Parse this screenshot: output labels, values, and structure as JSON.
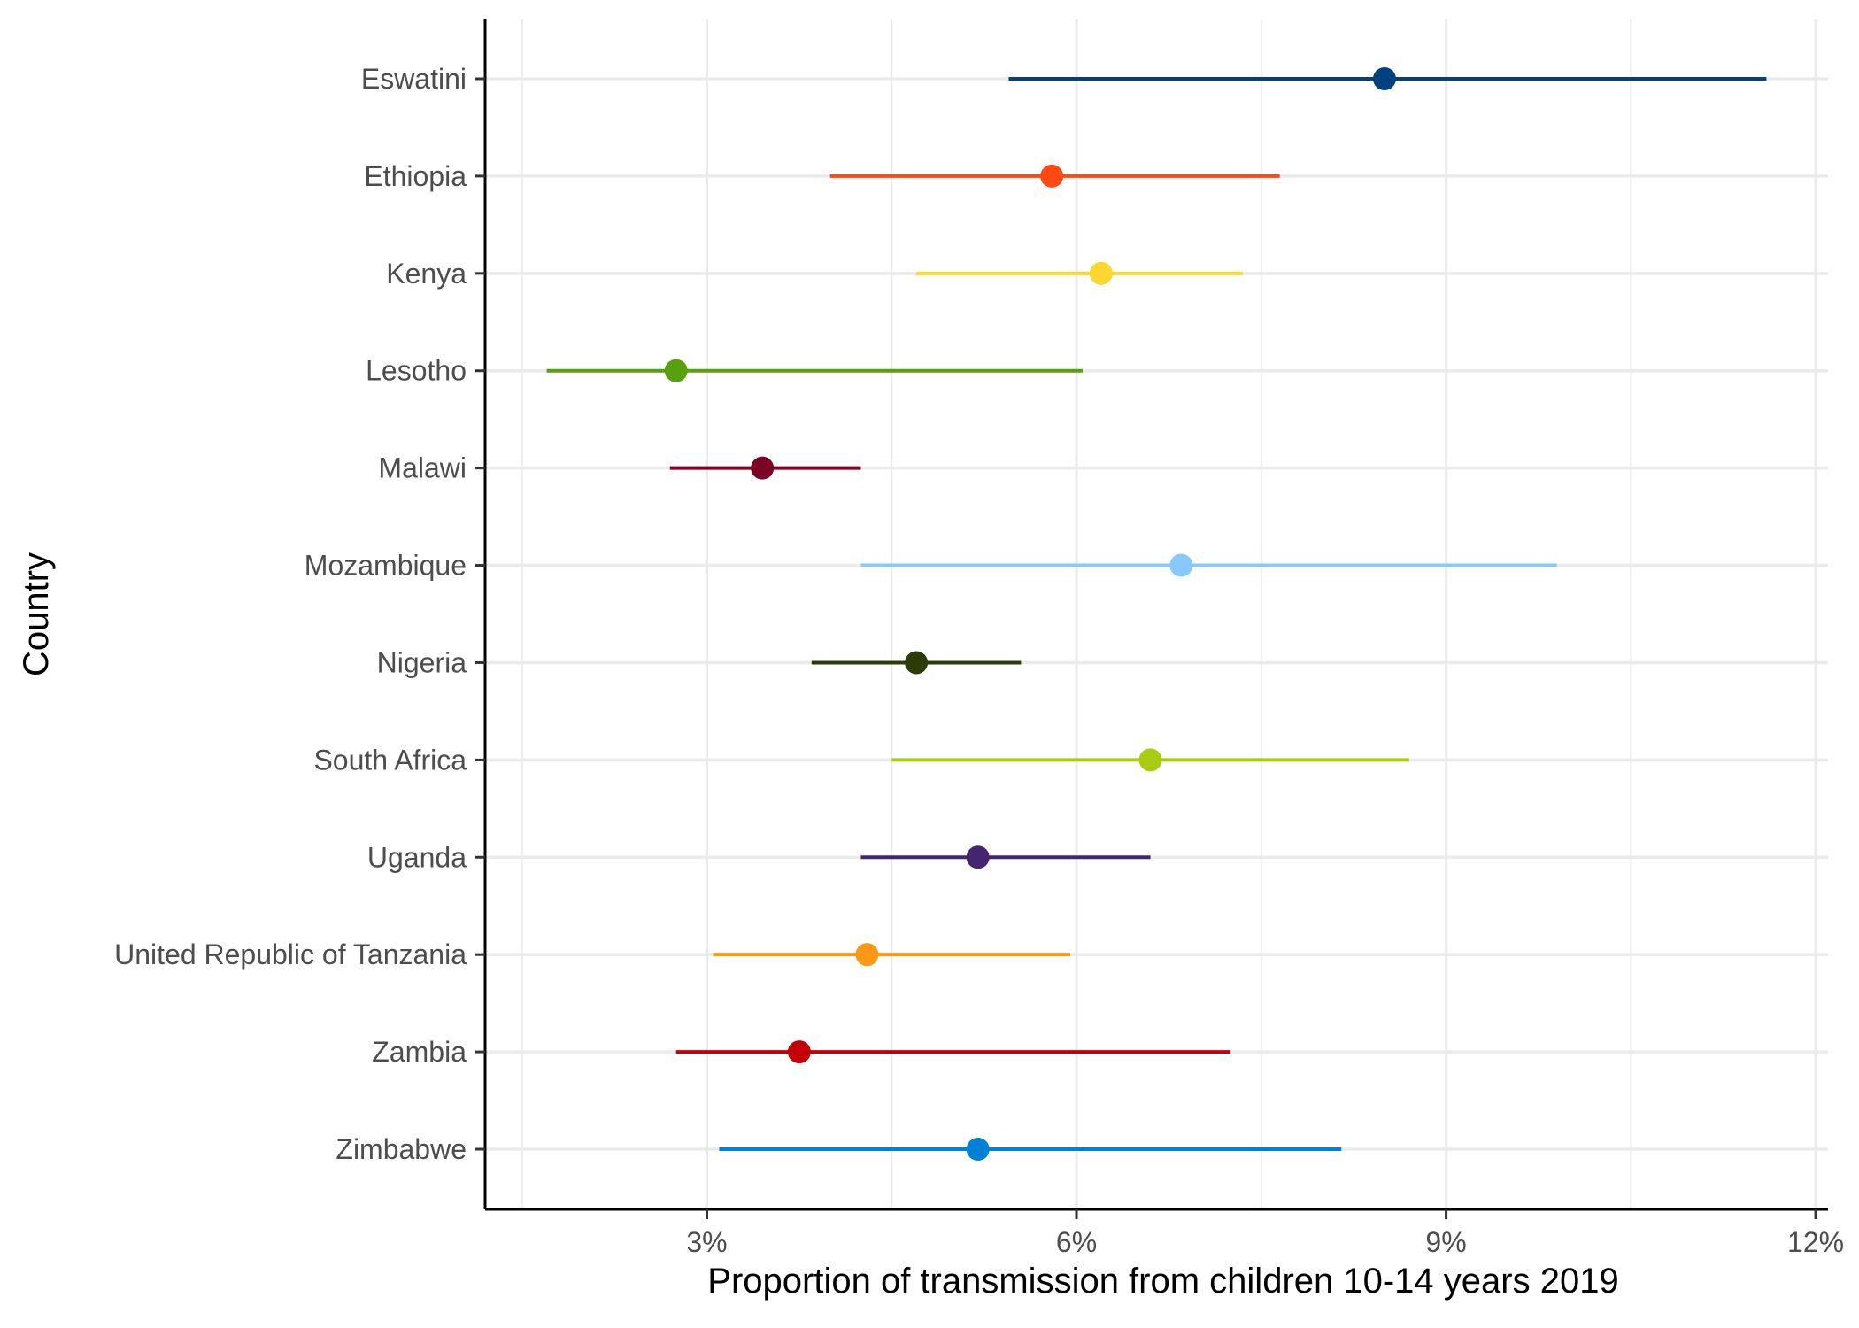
{
  "chart_data": {
    "type": "scatter",
    "title": "",
    "xlabel": "Proportion of transmission from children 10-14 years 2019",
    "ylabel": "Country",
    "xlim": [
      1.2,
      12.1
    ],
    "x_ticks": [
      3,
      6,
      9,
      12
    ],
    "x_tick_labels": [
      "3%",
      "6%",
      "9%",
      "12%"
    ],
    "x_minor_ticks": [
      1.5,
      4.5,
      7.5,
      10.5
    ],
    "grid": true,
    "legend": "none",
    "categories": [
      "Eswatini",
      "Ethiopia",
      "Kenya",
      "Lesotho",
      "Malawi",
      "Mozambique",
      "Nigeria",
      "South Africa",
      "Uganda",
      "United Republic of Tanzania",
      "Zambia",
      "Zimbabwe"
    ],
    "estimates": [
      8.5,
      5.8,
      6.2,
      2.75,
      3.45,
      6.85,
      4.7,
      6.6,
      5.2,
      4.3,
      3.75,
      5.2
    ],
    "lower": [
      5.45,
      4.0,
      4.7,
      1.7,
      2.7,
      4.25,
      3.85,
      4.5,
      4.25,
      3.05,
      2.75,
      3.1
    ],
    "upper": [
      11.6,
      7.65,
      7.35,
      6.05,
      4.25,
      9.9,
      5.55,
      8.7,
      6.6,
      5.95,
      7.25,
      8.15
    ],
    "colors": [
      "#02417f",
      "#fd4a12",
      "#fcd730",
      "#57a00e",
      "#7b0526",
      "#88c9fb",
      "#2c3b07",
      "#a8cc12",
      "#432570",
      "#fb9818",
      "#c30007",
      "#0181d5"
    ]
  }
}
